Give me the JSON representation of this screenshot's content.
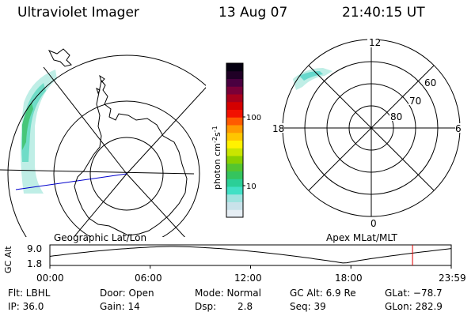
{
  "header": {
    "instrument": "Ultraviolet Imager",
    "date": "13 Aug 07",
    "time": "21:40:15 UT"
  },
  "left_panel": {
    "caption": "Geographic Lat/Lon"
  },
  "right_panel": {
    "caption": "Apex MLat/MLT",
    "mlt_labels": {
      "top": "12",
      "left": "18",
      "right": "6",
      "bottom": "0"
    },
    "lat_labels": [
      "60",
      "70",
      "80"
    ]
  },
  "colorbar": {
    "unit_text": "photon cm",
    "unit_sup1": "-2",
    "unit_s": "s",
    "unit_sup2": "-1",
    "tick_labels": [
      "100",
      "10"
    ],
    "colors": [
      "#e6eef4",
      "#c9e2ea",
      "#9fe3df",
      "#41e0c5",
      "#2bcf97",
      "#35c45e",
      "#54c530",
      "#8ad000",
      "#c9e500",
      "#fff200",
      "#ffc600",
      "#ff9a00",
      "#ff5a00",
      "#f21000",
      "#d40000",
      "#a8001c",
      "#7a0038",
      "#4a0040",
      "#200026",
      "#050011"
    ]
  },
  "altitude_plot": {
    "ylabel": "GC Alt",
    "y_ticks": [
      "9.0",
      "1.8"
    ],
    "x_ticks": [
      "00:00",
      "06:00",
      "12:00",
      "18:00",
      "23:59"
    ],
    "current_time_fraction": 0.9035
  },
  "info": {
    "flt": "Flt: LBHL",
    "door": "Door: Open",
    "mode": "Mode: Normal",
    "gc_alt": "GC Alt: 6.9 Re",
    "glat": "GLat: −78.7",
    "ip": "IP: 36.0",
    "gain": "Gain: 14",
    "dsp_label": "Dsp:",
    "dsp_value": "2.8",
    "seq": "Seq: 39",
    "glon": "GLon: 282.9"
  }
}
